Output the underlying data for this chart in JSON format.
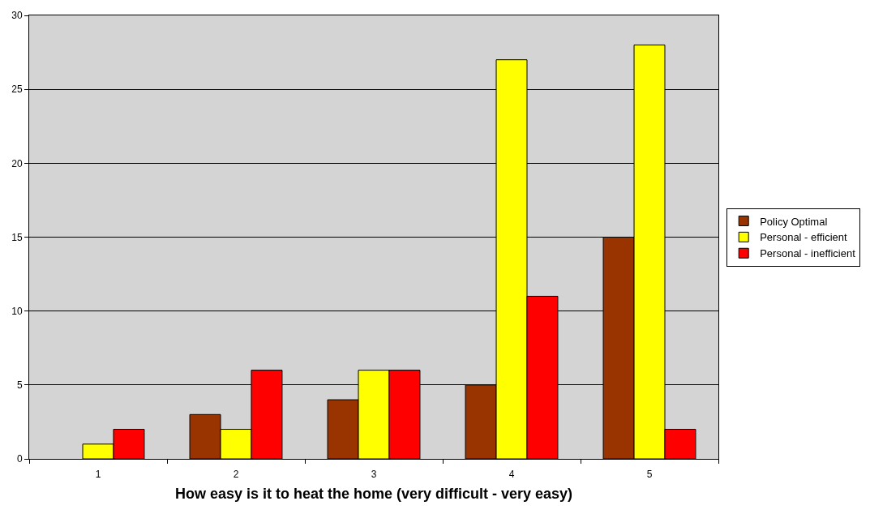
{
  "chart_data": {
    "type": "bar",
    "xlabel": "How easy is it to heat the home (very difficult - very easy)",
    "categories": [
      "1",
      "2",
      "3",
      "4",
      "5"
    ],
    "series": [
      {
        "name": "Policy Optimal",
        "color": "#993300",
        "values": [
          null,
          3,
          4,
          5,
          15
        ]
      },
      {
        "name": "Personal - efficient",
        "color": "#ffff00",
        "values": [
          1,
          2,
          6,
          27,
          28
        ]
      },
      {
        "name": "Personal - inefficient",
        "color": "#ff0000",
        "values": [
          2,
          6,
          6,
          11,
          2
        ]
      }
    ],
    "ylim": [
      0,
      30
    ],
    "yticks": [
      0,
      5,
      10,
      15,
      20,
      25,
      30
    ],
    "grid": "y",
    "legend": "right"
  }
}
